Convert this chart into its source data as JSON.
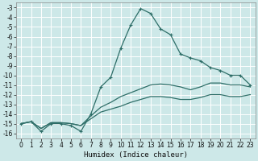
{
  "xlabel": "Humidex (Indice chaleur)",
  "bg_color": "#cde8e8",
  "grid_color": "#b8d8d8",
  "line_color": "#2e6e68",
  "x": [
    0,
    1,
    2,
    3,
    4,
    5,
    6,
    7,
    8,
    9,
    10,
    11,
    12,
    13,
    14,
    15,
    16,
    17,
    18,
    19,
    20,
    21,
    22,
    23
  ],
  "y_main": [
    -15.0,
    -14.8,
    -15.8,
    -15.0,
    -15.0,
    -15.2,
    -15.8,
    -14.0,
    -11.2,
    -10.2,
    -7.2,
    -4.8,
    -3.1,
    -3.6,
    -5.2,
    -5.8,
    -7.8,
    -8.2,
    -8.5,
    -9.2,
    -9.5,
    -10.0,
    -10.0,
    -11.0
  ],
  "y_line2": [
    -15.0,
    -14.8,
    -15.5,
    -14.9,
    -14.9,
    -15.0,
    -15.2,
    -14.2,
    -13.3,
    -12.8,
    -12.2,
    -11.8,
    -11.4,
    -11.0,
    -10.9,
    -11.0,
    -11.2,
    -11.5,
    -11.2,
    -10.8,
    -10.8,
    -11.0,
    -11.0,
    -11.2
  ],
  "y_line3": [
    -15.0,
    -14.8,
    -15.5,
    -14.9,
    -14.9,
    -15.0,
    -15.2,
    -14.5,
    -13.8,
    -13.5,
    -13.2,
    -12.8,
    -12.5,
    -12.2,
    -12.2,
    -12.3,
    -12.5,
    -12.5,
    -12.3,
    -12.0,
    -12.0,
    -12.2,
    -12.2,
    -12.0
  ],
  "ylim": [
    -16.5,
    -2.5
  ],
  "xlim": [
    -0.5,
    23.5
  ],
  "yticks": [
    -16,
    -15,
    -14,
    -13,
    -12,
    -11,
    -10,
    -9,
    -8,
    -7,
    -6,
    -5,
    -4,
    -3
  ],
  "xticks": [
    0,
    1,
    2,
    3,
    4,
    5,
    6,
    7,
    8,
    9,
    10,
    11,
    12,
    13,
    14,
    15,
    16,
    17,
    18,
    19,
    20,
    21,
    22,
    23
  ],
  "tick_fontsize": 5.5,
  "xlabel_fontsize": 6.5
}
